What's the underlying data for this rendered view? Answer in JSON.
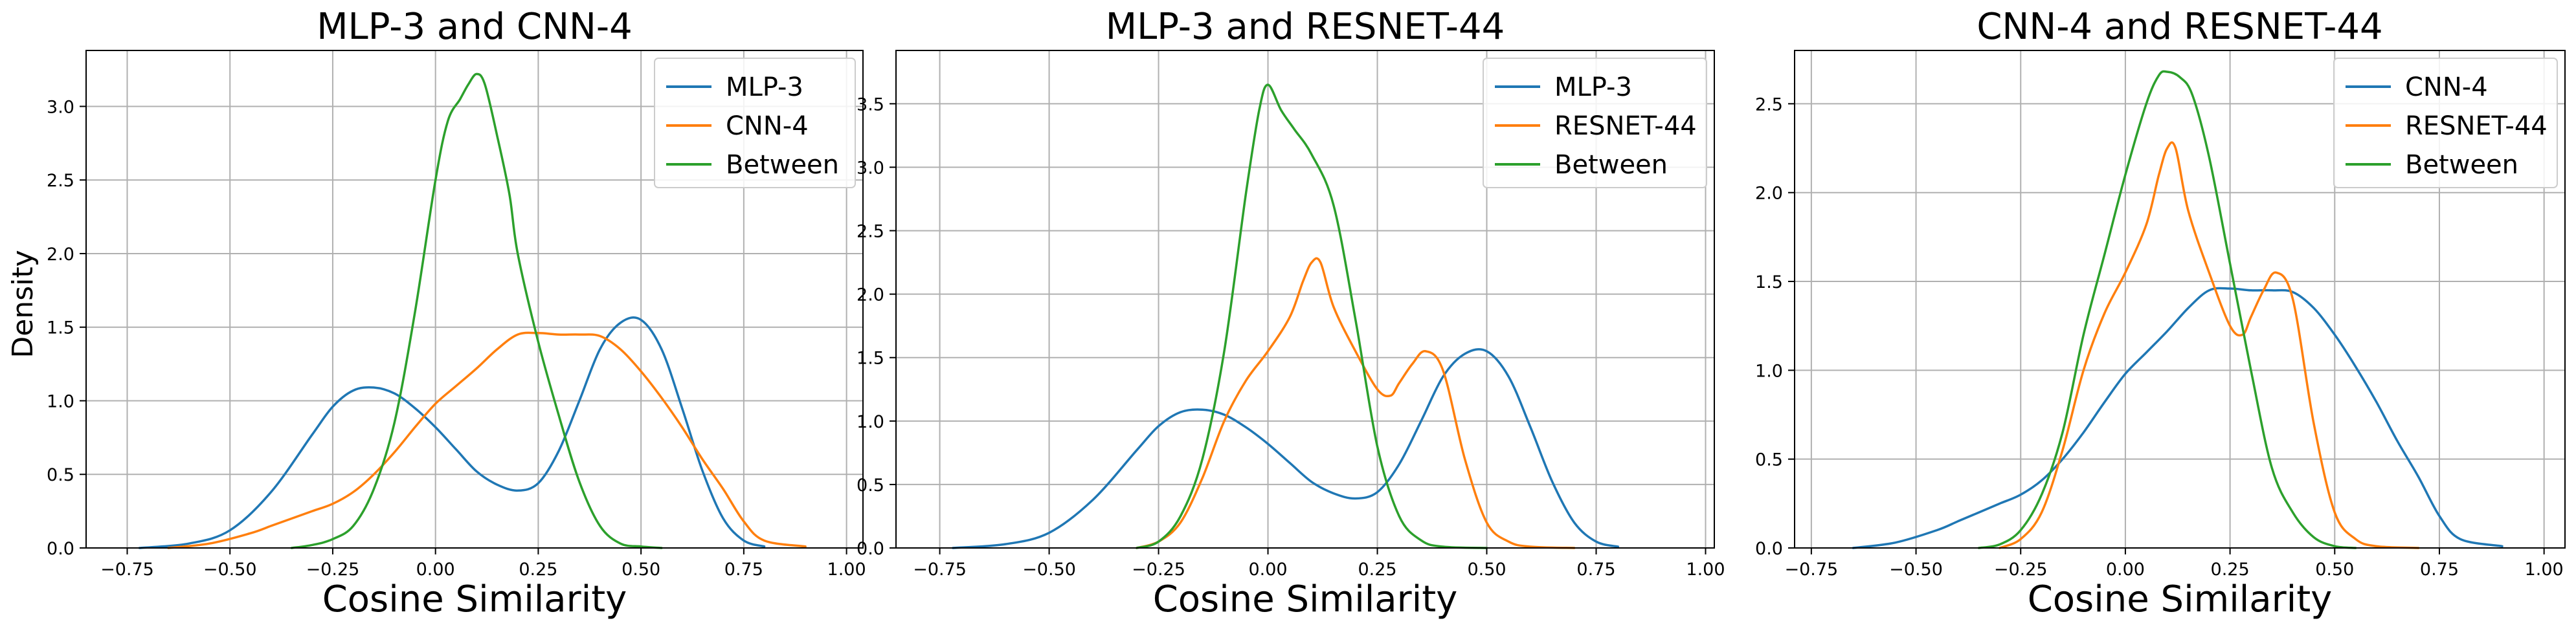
{
  "figure": {
    "ylabel": "Density"
  },
  "colors": {
    "blue": "#1f77b4",
    "orange": "#ff7f0e",
    "green": "#2ca02c",
    "grid": "#b0b0b0"
  },
  "chart_data": [
    {
      "type": "line",
      "title": "MLP-3 and CNN-4",
      "xlabel": "Cosine Similarity",
      "ylabel": "Density",
      "xlim": [
        -0.85,
        1.04
      ],
      "ylim": [
        0,
        3.38
      ],
      "xticks": [
        -0.75,
        -0.5,
        -0.25,
        0.0,
        0.25,
        0.5,
        0.75,
        1.0
      ],
      "xtick_labels": [
        "−0.75",
        "−0.50",
        "−0.25",
        "0.00",
        "0.25",
        "0.50",
        "0.75",
        "1.00"
      ],
      "yticks": [
        0,
        0.5,
        1.0,
        1.5,
        2.0,
        2.5,
        3.0
      ],
      "ytick_labels": [
        "0.0",
        "0.5",
        "1.0",
        "1.5",
        "2.0",
        "2.5",
        "3.0"
      ],
      "grid": true,
      "legend_position": "top-right",
      "series": [
        {
          "name": "MLP-3",
          "color": "#1f77b4",
          "x": [
            -0.72,
            -0.6,
            -0.5,
            -0.4,
            -0.3,
            -0.25,
            -0.2,
            -0.15,
            -0.1,
            -0.05,
            0.0,
            0.05,
            0.1,
            0.15,
            0.2,
            0.25,
            0.3,
            0.35,
            0.4,
            0.45,
            0.5,
            0.55,
            0.6,
            0.65,
            0.7,
            0.75,
            0.8
          ],
          "y": [
            0,
            0.03,
            0.12,
            0.38,
            0.77,
            0.96,
            1.07,
            1.09,
            1.05,
            0.95,
            0.82,
            0.67,
            0.52,
            0.43,
            0.39,
            0.44,
            0.66,
            1.0,
            1.35,
            1.53,
            1.55,
            1.35,
            0.95,
            0.52,
            0.2,
            0.05,
            0.01
          ]
        },
        {
          "name": "CNN-4",
          "color": "#ff7f0e",
          "x": [
            -0.65,
            -0.55,
            -0.45,
            -0.4,
            -0.35,
            -0.3,
            -0.25,
            -0.2,
            -0.15,
            -0.1,
            -0.05,
            0.0,
            0.05,
            0.1,
            0.15,
            0.2,
            0.25,
            0.3,
            0.35,
            0.4,
            0.45,
            0.5,
            0.55,
            0.6,
            0.65,
            0.7,
            0.75,
            0.8,
            0.9
          ],
          "y": [
            0,
            0.03,
            0.1,
            0.15,
            0.2,
            0.25,
            0.3,
            0.38,
            0.5,
            0.65,
            0.82,
            0.98,
            1.1,
            1.22,
            1.35,
            1.45,
            1.46,
            1.45,
            1.45,
            1.44,
            1.35,
            1.2,
            1.02,
            0.82,
            0.6,
            0.4,
            0.18,
            0.05,
            0.01
          ]
        },
        {
          "name": "Between",
          "color": "#2ca02c",
          "x": [
            -0.35,
            -0.3,
            -0.25,
            -0.2,
            -0.15,
            -0.1,
            -0.05,
            0.0,
            0.03,
            0.06,
            0.08,
            0.1,
            0.12,
            0.15,
            0.18,
            0.2,
            0.25,
            0.3,
            0.35,
            0.4,
            0.45,
            0.5,
            0.55
          ],
          "y": [
            0,
            0.02,
            0.06,
            0.15,
            0.4,
            0.85,
            1.6,
            2.5,
            2.9,
            3.05,
            3.15,
            3.22,
            3.15,
            2.8,
            2.4,
            2.0,
            1.4,
            0.9,
            0.45,
            0.15,
            0.03,
            0.01,
            0
          ]
        }
      ]
    },
    {
      "type": "line",
      "title": "MLP-3 and RESNET-44",
      "xlabel": "Cosine Similarity",
      "ylabel": "",
      "xlim": [
        -0.85,
        1.02
      ],
      "ylim": [
        0,
        3.92
      ],
      "xticks": [
        -0.75,
        -0.5,
        -0.25,
        0.0,
        0.25,
        0.5,
        0.75,
        1.0
      ],
      "xtick_labels": [
        "−0.75",
        "−0.50",
        "−0.25",
        "0.00",
        "0.25",
        "0.50",
        "0.75",
        "1.00"
      ],
      "yticks": [
        0,
        0.5,
        1.0,
        1.5,
        2.0,
        2.5,
        3.0,
        3.5
      ],
      "ytick_labels": [
        "0.0",
        "0.5",
        "1.0",
        "1.5",
        "2.0",
        "2.5",
        "3.0",
        "3.5"
      ],
      "grid": true,
      "legend_position": "top-right",
      "series": [
        {
          "name": "MLP-3",
          "color": "#1f77b4",
          "x": [
            -0.72,
            -0.6,
            -0.5,
            -0.4,
            -0.3,
            -0.25,
            -0.2,
            -0.15,
            -0.1,
            -0.05,
            0.0,
            0.05,
            0.1,
            0.15,
            0.2,
            0.25,
            0.3,
            0.35,
            0.4,
            0.45,
            0.5,
            0.55,
            0.6,
            0.65,
            0.7,
            0.75,
            0.8
          ],
          "y": [
            0,
            0.03,
            0.12,
            0.38,
            0.77,
            0.96,
            1.07,
            1.09,
            1.05,
            0.95,
            0.82,
            0.67,
            0.52,
            0.43,
            0.39,
            0.44,
            0.66,
            1.0,
            1.35,
            1.53,
            1.55,
            1.35,
            0.95,
            0.52,
            0.2,
            0.05,
            0.01
          ]
        },
        {
          "name": "RESNET-44",
          "color": "#ff7f0e",
          "x": [
            -0.3,
            -0.25,
            -0.2,
            -0.15,
            -0.1,
            -0.05,
            0.0,
            0.05,
            0.08,
            0.1,
            0.12,
            0.15,
            0.2,
            0.25,
            0.28,
            0.3,
            0.33,
            0.36,
            0.4,
            0.45,
            0.5,
            0.55,
            0.6,
            0.7
          ],
          "y": [
            0,
            0.05,
            0.2,
            0.55,
            1.0,
            1.32,
            1.55,
            1.82,
            2.1,
            2.25,
            2.25,
            1.9,
            1.55,
            1.25,
            1.2,
            1.3,
            1.45,
            1.55,
            1.4,
            0.7,
            0.2,
            0.05,
            0.01,
            0
          ]
        },
        {
          "name": "Between",
          "color": "#2ca02c",
          "x": [
            -0.3,
            -0.25,
            -0.2,
            -0.15,
            -0.1,
            -0.05,
            -0.02,
            0.0,
            0.03,
            0.06,
            0.1,
            0.15,
            0.2,
            0.25,
            0.3,
            0.35,
            0.4,
            0.5
          ],
          "y": [
            0,
            0.05,
            0.25,
            0.7,
            1.55,
            2.8,
            3.45,
            3.65,
            3.45,
            3.3,
            3.1,
            2.7,
            1.8,
            0.8,
            0.25,
            0.06,
            0.01,
            0
          ]
        }
      ]
    },
    {
      "type": "line",
      "title": "CNN-4 and RESNET-44",
      "xlabel": "Cosine Similarity",
      "ylabel": "",
      "xlim": [
        -0.79,
        1.05
      ],
      "ylim": [
        0,
        2.8
      ],
      "xticks": [
        -0.75,
        -0.5,
        -0.25,
        0.0,
        0.25,
        0.5,
        0.75,
        1.0
      ],
      "xtick_labels": [
        "−0.75",
        "−0.50",
        "−0.25",
        "0.00",
        "0.25",
        "0.50",
        "0.75",
        "1.00"
      ],
      "yticks": [
        0,
        0.5,
        1.0,
        1.5,
        2.0,
        2.5
      ],
      "ytick_labels": [
        "0.0",
        "0.5",
        "1.0",
        "1.5",
        "2.0",
        "2.5"
      ],
      "grid": true,
      "legend_position": "top-right",
      "series": [
        {
          "name": "CNN-4",
          "color": "#1f77b4",
          "x": [
            -0.65,
            -0.55,
            -0.45,
            -0.4,
            -0.35,
            -0.3,
            -0.25,
            -0.2,
            -0.15,
            -0.1,
            -0.05,
            0.0,
            0.05,
            0.1,
            0.15,
            0.2,
            0.25,
            0.3,
            0.35,
            0.4,
            0.45,
            0.5,
            0.55,
            0.6,
            0.65,
            0.7,
            0.75,
            0.8,
            0.9
          ],
          "y": [
            0,
            0.03,
            0.1,
            0.15,
            0.2,
            0.25,
            0.3,
            0.38,
            0.5,
            0.65,
            0.82,
            0.98,
            1.1,
            1.22,
            1.35,
            1.45,
            1.46,
            1.45,
            1.45,
            1.44,
            1.35,
            1.2,
            1.02,
            0.82,
            0.6,
            0.4,
            0.18,
            0.05,
            0.01
          ]
        },
        {
          "name": "RESNET-44",
          "color": "#ff7f0e",
          "x": [
            -0.3,
            -0.25,
            -0.2,
            -0.15,
            -0.1,
            -0.05,
            0.0,
            0.05,
            0.08,
            0.1,
            0.12,
            0.15,
            0.2,
            0.25,
            0.28,
            0.3,
            0.33,
            0.36,
            0.4,
            0.45,
            0.5,
            0.55,
            0.6,
            0.7
          ],
          "y": [
            0,
            0.05,
            0.2,
            0.55,
            1.0,
            1.32,
            1.55,
            1.82,
            2.1,
            2.25,
            2.25,
            1.9,
            1.55,
            1.25,
            1.2,
            1.3,
            1.45,
            1.55,
            1.4,
            0.7,
            0.2,
            0.05,
            0.01,
            0
          ]
        },
        {
          "name": "Between",
          "color": "#2ca02c",
          "x": [
            -0.35,
            -0.3,
            -0.25,
            -0.2,
            -0.15,
            -0.1,
            -0.05,
            0.0,
            0.05,
            0.08,
            0.1,
            0.13,
            0.16,
            0.2,
            0.25,
            0.3,
            0.35,
            0.4,
            0.45,
            0.5,
            0.55
          ],
          "y": [
            0,
            0.02,
            0.1,
            0.3,
            0.65,
            1.2,
            1.65,
            2.1,
            2.5,
            2.66,
            2.68,
            2.65,
            2.55,
            2.2,
            1.6,
            1.0,
            0.45,
            0.2,
            0.06,
            0.01,
            0
          ]
        }
      ]
    }
  ]
}
